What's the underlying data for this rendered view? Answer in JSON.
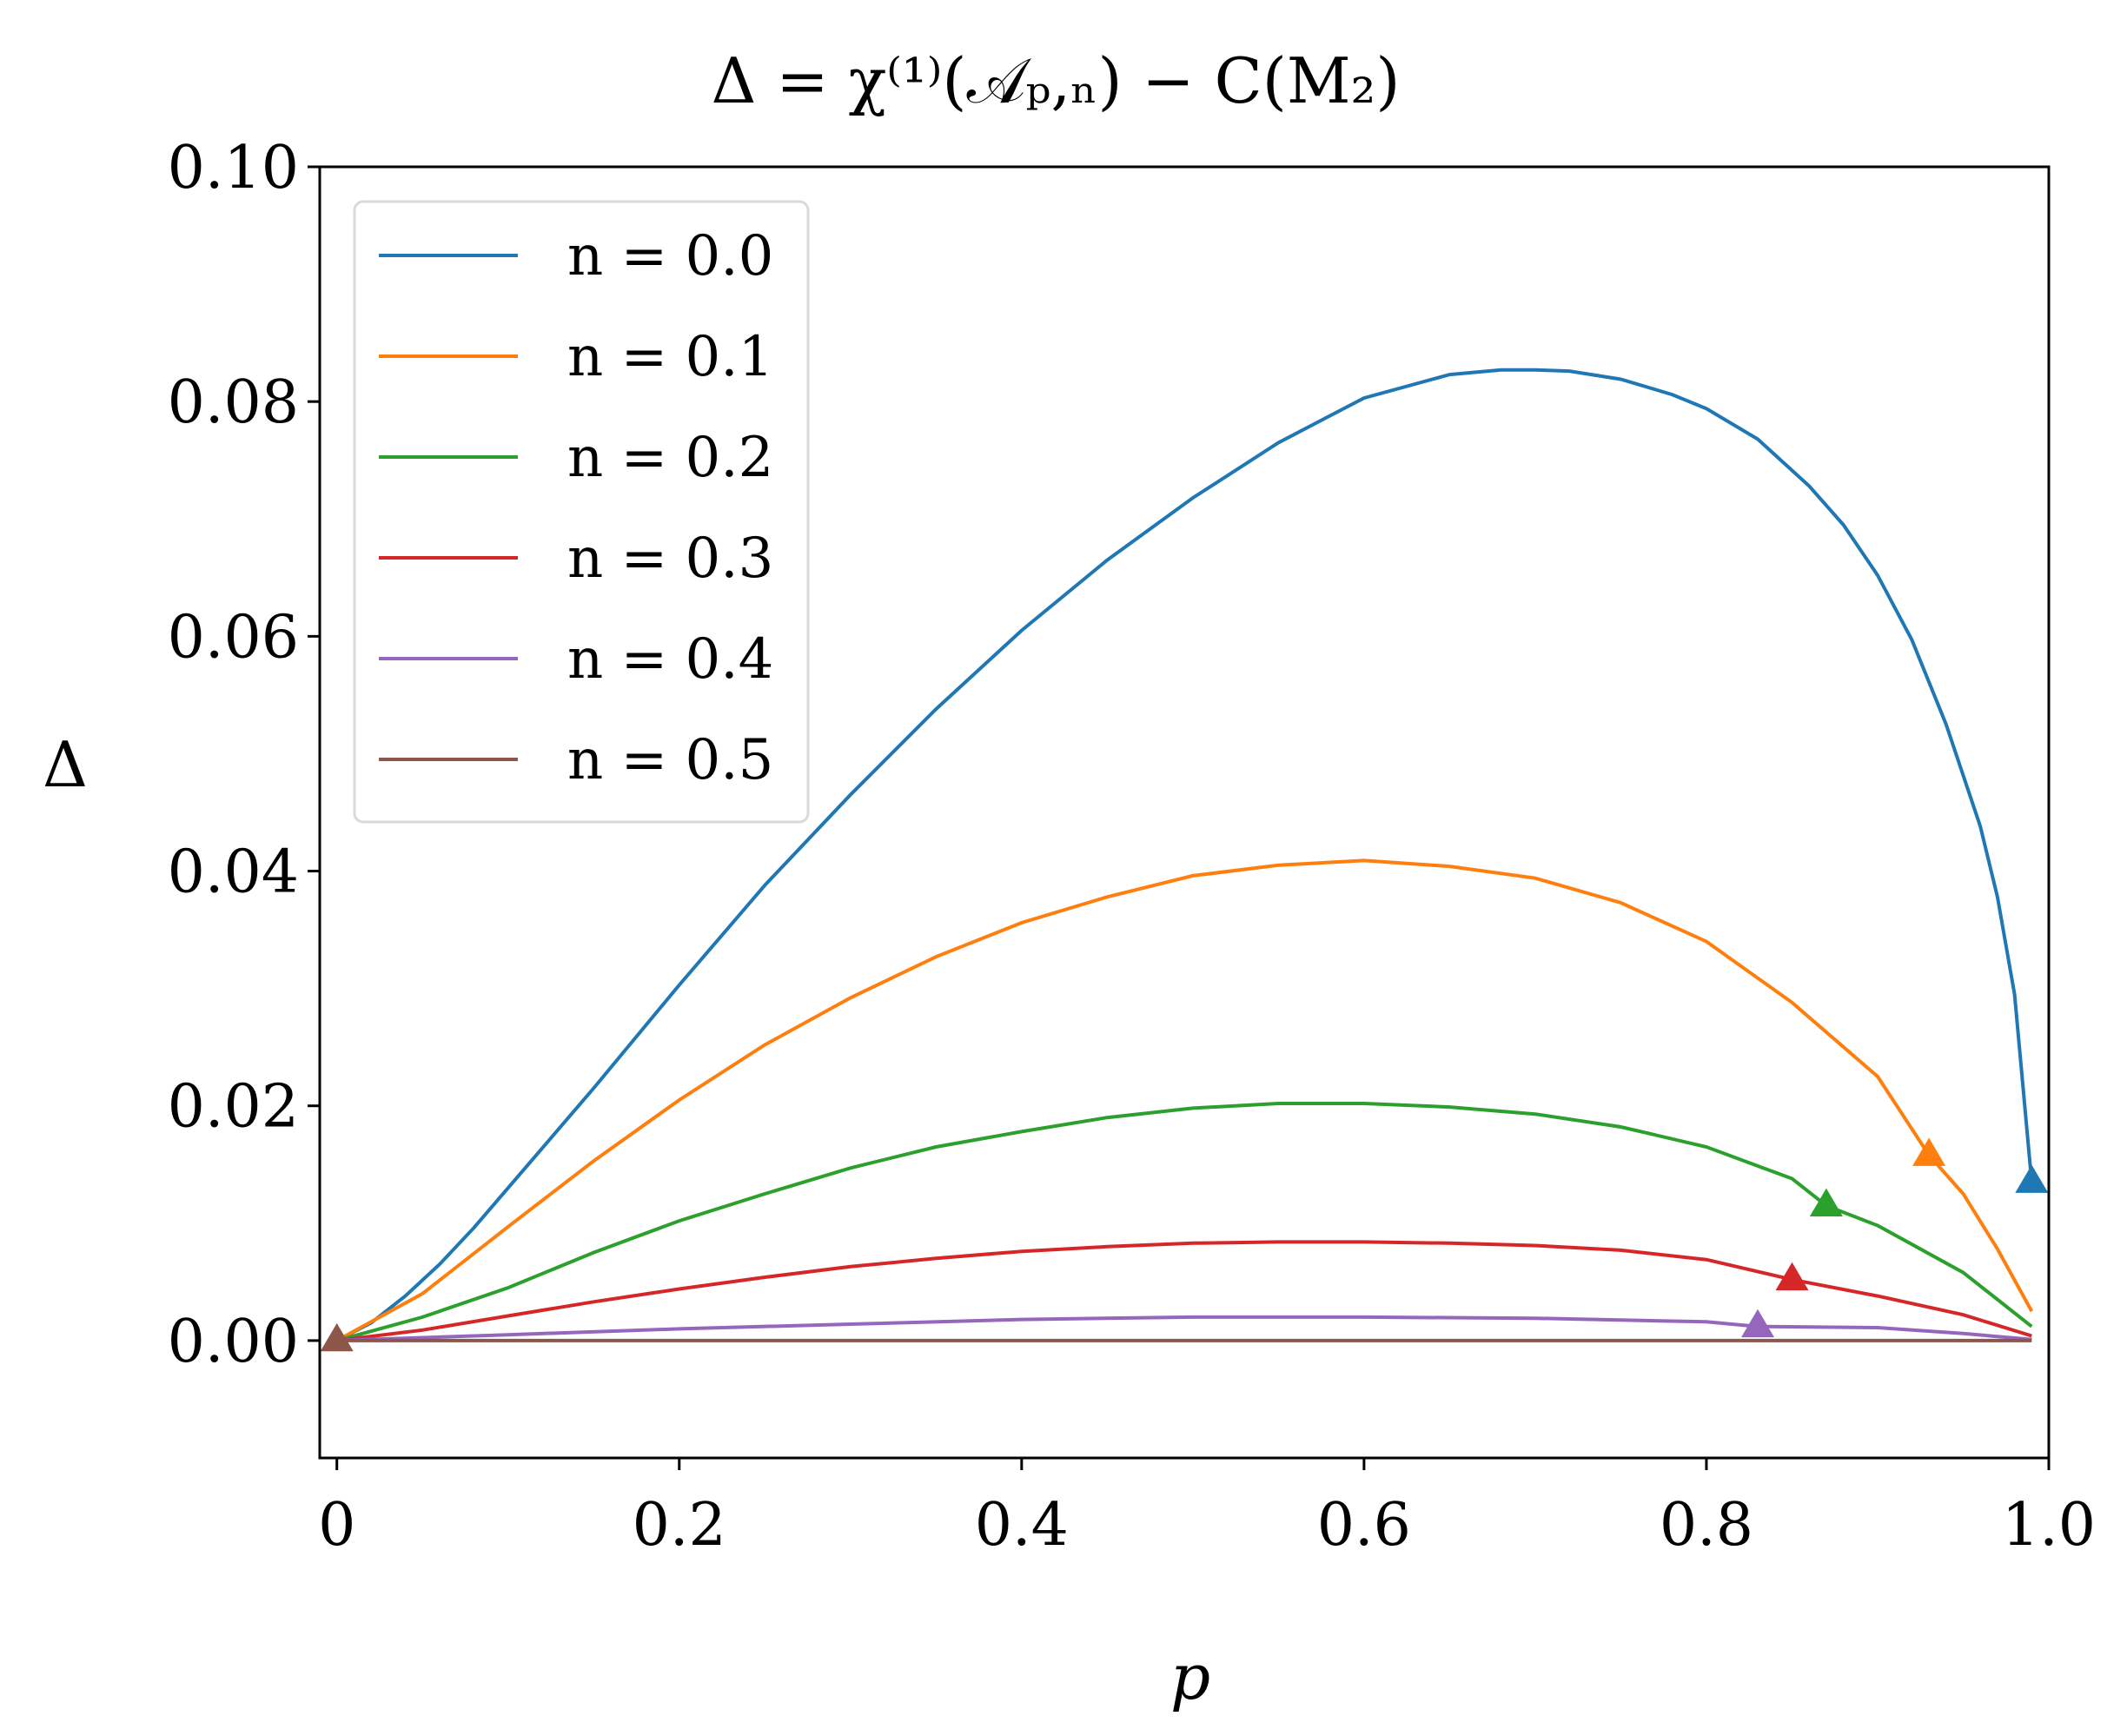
{
  "chart_data": {
    "type": "line",
    "title": "Δ = χ⁽¹⁾(𝒜ₚ,ₙ) − C(M₂)",
    "xlabel": "p",
    "ylabel": "Δ",
    "xlim": [
      -0.01,
      1.0
    ],
    "ylim": [
      -0.01,
      0.1
    ],
    "xticks": [
      0,
      0.2,
      0.4,
      0.6,
      0.8,
      1.0
    ],
    "xtick_labels": [
      "0",
      "0.2",
      "0.4",
      "0.6",
      "0.8",
      "1.0"
    ],
    "yticks": [
      0.0,
      0.02,
      0.04,
      0.06,
      0.08,
      0.1
    ],
    "ytick_labels": [
      "0.00",
      "0.02",
      "0.04",
      "0.06",
      "0.08",
      "0.10"
    ],
    "grid": false,
    "legend_position": "top-left",
    "series": [
      {
        "name": "n = 0.0",
        "color": "#1f77b4",
        "x": [
          0,
          0.02,
          0.04,
          0.06,
          0.08,
          0.1,
          0.15,
          0.2,
          0.25,
          0.3,
          0.35,
          0.4,
          0.45,
          0.5,
          0.55,
          0.6,
          0.65,
          0.68,
          0.7,
          0.72,
          0.75,
          0.78,
          0.8,
          0.83,
          0.86,
          0.88,
          0.9,
          0.92,
          0.94,
          0.96,
          0.97,
          0.98,
          0.99
        ],
        "y": [
          0,
          0.0015,
          0.0038,
          0.0065,
          0.0096,
          0.013,
          0.0215,
          0.0303,
          0.0388,
          0.0465,
          0.0538,
          0.0605,
          0.0665,
          0.0718,
          0.0765,
          0.0803,
          0.0823,
          0.0827,
          0.0827,
          0.0826,
          0.0819,
          0.0806,
          0.0794,
          0.0768,
          0.0728,
          0.0695,
          0.0652,
          0.0597,
          0.0525,
          0.0438,
          0.0378,
          0.0295,
          0.0135
        ]
      },
      {
        "name": "n = 0.1",
        "color": "#ff7f0e",
        "x": [
          0,
          0.05,
          0.1,
          0.15,
          0.2,
          0.25,
          0.3,
          0.35,
          0.4,
          0.45,
          0.5,
          0.55,
          0.6,
          0.65,
          0.7,
          0.75,
          0.8,
          0.85,
          0.9,
          0.93,
          0.95,
          0.97,
          0.99
        ],
        "y": [
          0,
          0.004,
          0.0097,
          0.0153,
          0.0205,
          0.0252,
          0.0292,
          0.0327,
          0.0356,
          0.0378,
          0.0396,
          0.0405,
          0.0409,
          0.0404,
          0.0394,
          0.0373,
          0.034,
          0.0288,
          0.0225,
          0.0158,
          0.0125,
          0.0078,
          0.0025
        ]
      },
      {
        "name": "n = 0.2",
        "color": "#2ca02c",
        "x": [
          0,
          0.05,
          0.1,
          0.15,
          0.2,
          0.25,
          0.3,
          0.35,
          0.4,
          0.45,
          0.5,
          0.55,
          0.58,
          0.6,
          0.65,
          0.7,
          0.75,
          0.8,
          0.85,
          0.87,
          0.9,
          0.95,
          0.99
        ],
        "y": [
          0,
          0.002,
          0.0045,
          0.0075,
          0.0102,
          0.0125,
          0.0147,
          0.0165,
          0.0178,
          0.019,
          0.0198,
          0.0202,
          0.0202,
          0.0202,
          0.0199,
          0.0193,
          0.0182,
          0.0165,
          0.0138,
          0.0115,
          0.0098,
          0.0058,
          0.0012
        ]
      },
      {
        "name": "n = 0.3",
        "color": "#d62728",
        "x": [
          0,
          0.05,
          0.1,
          0.15,
          0.2,
          0.25,
          0.3,
          0.35,
          0.4,
          0.45,
          0.5,
          0.55,
          0.6,
          0.65,
          0.7,
          0.75,
          0.8,
          0.85,
          0.9,
          0.95,
          0.99
        ],
        "y": [
          0,
          0.0009,
          0.0021,
          0.0033,
          0.0044,
          0.0054,
          0.0063,
          0.007,
          0.0076,
          0.008,
          0.0083,
          0.0084,
          0.0084,
          0.0083,
          0.0081,
          0.0077,
          0.0069,
          0.0052,
          0.0038,
          0.0022,
          0.0004
        ]
      },
      {
        "name": "n = 0.4",
        "color": "#9467bd",
        "x": [
          0,
          0.1,
          0.2,
          0.3,
          0.4,
          0.5,
          0.55,
          0.6,
          0.7,
          0.8,
          0.83,
          0.9,
          0.95,
          0.99
        ],
        "y": [
          0,
          0.0005,
          0.001,
          0.0014,
          0.0018,
          0.002,
          0.002,
          0.002,
          0.0019,
          0.0016,
          0.0012,
          0.0011,
          0.0006,
          0.0001
        ]
      },
      {
        "name": "n = 0.5",
        "color": "#8c564b",
        "x": [
          0,
          0.2,
          0.4,
          0.6,
          0.8,
          0.99
        ],
        "y": [
          0,
          0,
          0,
          0,
          0,
          0
        ]
      }
    ],
    "markers": [
      {
        "series": "n = 0.0",
        "x": 0.99,
        "y": 0.0135
      },
      {
        "series": "n = 0.1",
        "x": 0.93,
        "y": 0.0158
      },
      {
        "series": "n = 0.2",
        "x": 0.87,
        "y": 0.0115
      },
      {
        "series": "n = 0.3",
        "x": 0.85,
        "y": 0.0052
      },
      {
        "series": "n = 0.4",
        "x": 0.83,
        "y": 0.0012
      },
      {
        "series": "n = 0.5",
        "x": 0.0,
        "y": 0.0
      }
    ]
  }
}
